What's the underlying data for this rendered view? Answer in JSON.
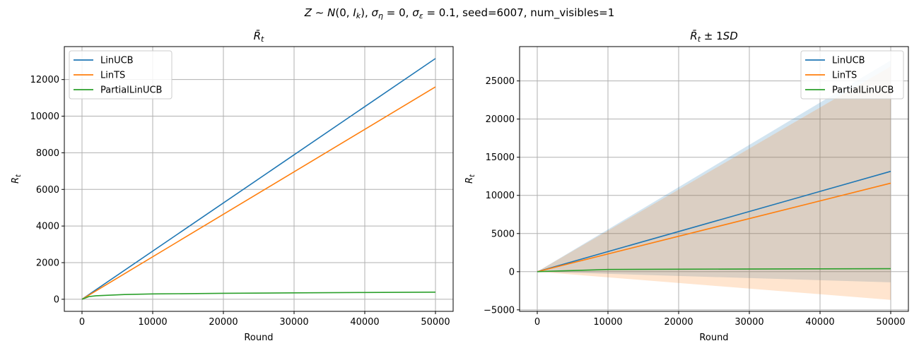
{
  "suptitle": "Z ~ N(0, I_k), σ_η = 0, σ_ε = 0.1, seed=6007, num_visibles=1",
  "series_colors": {
    "LinUCB": "#1f77b4",
    "LinTS": "#ff7f0e",
    "PartialLinUCB": "#2ca02c"
  },
  "chart_data": [
    {
      "type": "line",
      "title": "R̄_t",
      "xlabel": "Round",
      "ylabel": "R_t",
      "xlim": [
        -2500,
        52500
      ],
      "ylim": [
        -660,
        13800
      ],
      "xticks": [
        0,
        10000,
        20000,
        30000,
        40000,
        50000
      ],
      "yticks": [
        0,
        2000,
        4000,
        6000,
        8000,
        10000,
        12000
      ],
      "grid": true,
      "legend_position": "top-left",
      "series": [
        {
          "name": "LinUCB",
          "x": [
            0,
            50000
          ],
          "y": [
            0,
            13150
          ]
        },
        {
          "name": "LinTS",
          "x": [
            0,
            50000
          ],
          "y": [
            0,
            11600
          ]
        },
        {
          "name": "PartialLinUCB",
          "x": [
            0,
            1000,
            2000,
            4000,
            6000,
            10000,
            20000,
            30000,
            40000,
            50000
          ],
          "y": [
            0,
            150,
            190,
            225,
            260,
            290,
            325,
            350,
            370,
            390
          ]
        }
      ]
    },
    {
      "type": "line",
      "title": "R̄_t ± 1SD",
      "xlabel": "Round",
      "ylabel": "R_t",
      "xlim": [
        -2500,
        52500
      ],
      "ylim": [
        -5200,
        29500
      ],
      "xticks": [
        0,
        10000,
        20000,
        30000,
        40000,
        50000
      ],
      "yticks": [
        -5000,
        0,
        5000,
        10000,
        15000,
        20000,
        25000
      ],
      "grid": true,
      "legend_position": "top-right",
      "series": [
        {
          "name": "LinUCB",
          "x": [
            0,
            50000
          ],
          "y": [
            0,
            13150
          ],
          "upper": [
            0,
            27700
          ],
          "lower": [
            0,
            -1400
          ]
        },
        {
          "name": "LinTS",
          "x": [
            0,
            50000
          ],
          "y": [
            0,
            11600
          ],
          "upper": [
            0,
            26900
          ],
          "lower": [
            0,
            -3700
          ]
        },
        {
          "name": "PartialLinUCB",
          "x": [
            0,
            10000,
            20000,
            30000,
            40000,
            50000
          ],
          "y": [
            0,
            290,
            325,
            350,
            370,
            390
          ],
          "upper": [
            0,
            340,
            380,
            410,
            430,
            450
          ],
          "lower": [
            0,
            240,
            270,
            290,
            310,
            330
          ]
        }
      ]
    }
  ]
}
